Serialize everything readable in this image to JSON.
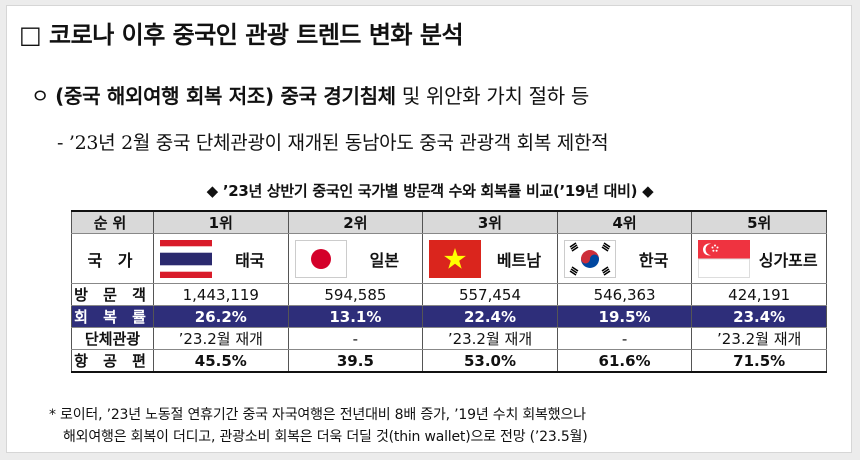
{
  "heading": "□ 코로나 이후 중국인 관광 트렌드 변화 분석",
  "bullet1": {
    "marker": "ㅇ",
    "bold": "(중국 해외여행 회복 저조) 중국 경기침체",
    "rest": "및 위안화 가치 절하 등"
  },
  "bullet2": "- ’23년 2월 중국 단체관광이 재개된 동남아도 중국 관광객 회복 제한적",
  "caption": "◆ ’23년 상반기 중국인 국가별 방문객 수와 회복률 비교(’19년 대비) ◆",
  "table": {
    "row_labels": {
      "rank": "순위",
      "country": "국 가",
      "visitors": "방 문 객",
      "recovery": "회 복 률",
      "group_tour": "단체관광",
      "flights": "항 공 편"
    },
    "columns": [
      {
        "rank": "1위",
        "country": "태국",
        "flag_icon": "thailand-flag-icon",
        "visitors": "1,443,119",
        "recovery": "26.2%",
        "group_tour": "’23.2월 재개",
        "flights": "45.5%"
      },
      {
        "rank": "2위",
        "country": "일본",
        "flag_icon": "japan-flag-icon",
        "visitors": "594,585",
        "recovery": "13.1%",
        "group_tour": "-",
        "flights": "39.5"
      },
      {
        "rank": "3위",
        "country": "베트남",
        "flag_icon": "vietnam-flag-icon",
        "visitors": "557,454",
        "recovery": "22.4%",
        "group_tour": "’23.2월 재개",
        "flights": "53.0%"
      },
      {
        "rank": "4위",
        "country": "한국",
        "flag_icon": "korea-flag-icon",
        "visitors": "546,363",
        "recovery": "19.5%",
        "group_tour": "-",
        "flights": "61.6%"
      },
      {
        "rank": "5위",
        "country": "싱가포르",
        "flag_icon": "singapore-flag-icon",
        "visitors": "424,191",
        "recovery": "23.4%",
        "group_tour": "’23.2월 재개",
        "flights": "71.5%"
      }
    ]
  },
  "footnote": {
    "line1": "* 로이터, ’23년 노동절 연휴기간 중국 자국여행은 전년대비 8배 증가, ’19년 수치 회복했으나",
    "line2": "해외여행은 회복이 더디고, 관광소비 회복은 더욱 더딜 것(thin wallet)으로 전망 (’23.5월)"
  },
  "colors": {
    "rank_row_bg": "#d9d9d9",
    "recovery_row_bg": "#2e2e7a",
    "recovery_row_text": "#ffffff"
  }
}
